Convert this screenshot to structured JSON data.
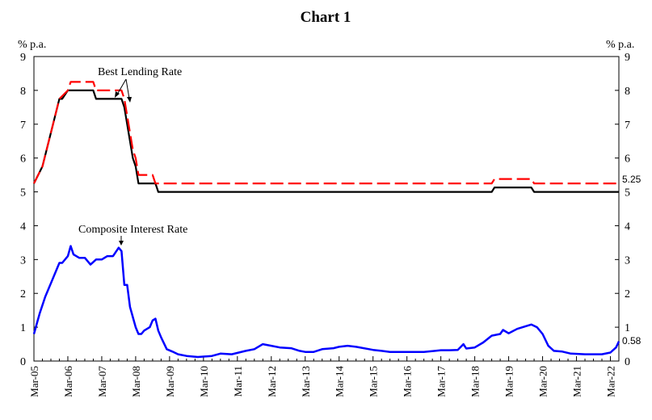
{
  "chart_data": {
    "type": "line",
    "title": "Chart 1",
    "ylabel_left": "% p.a.",
    "ylabel_right": "% p.a.",
    "ylim": [
      0,
      9
    ],
    "yticks": [
      0,
      1,
      2,
      3,
      4,
      5,
      6,
      7,
      8,
      9
    ],
    "x_start": "2005-03",
    "x_end": "2022-06",
    "xticks": [
      "Mar-05",
      "Mar-06",
      "Mar-07",
      "Mar-08",
      "Mar-09",
      "Mar-10",
      "Mar-11",
      "Mar-12",
      "Mar-13",
      "Mar-14",
      "Mar-15",
      "Mar-16",
      "Mar-17",
      "Mar-18",
      "Mar-19",
      "Mar-20",
      "Mar-21",
      "Mar-22"
    ],
    "grid": false,
    "annotations": [
      {
        "text": "Best Lending Rate",
        "series": "Best Lending Rate"
      },
      {
        "text": "Composite Interest Rate",
        "series": "Composite Interest Rate"
      }
    ],
    "end_labels": [
      {
        "text": "5.25",
        "value": 5.25
      },
      {
        "text": "0.58",
        "value": 0.58
      }
    ],
    "series": [
      {
        "name": "Best Lending Rate",
        "color": "#ff0000",
        "dash": true,
        "points": [
          [
            "2005-03",
            5.25
          ],
          [
            "2005-06",
            5.75
          ],
          [
            "2005-09",
            6.75
          ],
          [
            "2005-12",
            7.75
          ],
          [
            "2006-03",
            8.0
          ],
          [
            "2006-04",
            8.25
          ],
          [
            "2006-12",
            8.25
          ],
          [
            "2007-01",
            8.0
          ],
          [
            "2007-10",
            8.0
          ],
          [
            "2007-11",
            7.75
          ],
          [
            "2007-12",
            7.25
          ],
          [
            "2008-01",
            6.75
          ],
          [
            "2008-02",
            6.25
          ],
          [
            "2008-03",
            6.0
          ],
          [
            "2008-04",
            5.5
          ],
          [
            "2008-09",
            5.5
          ],
          [
            "2008-10",
            5.25
          ],
          [
            "2018-09",
            5.25
          ],
          [
            "2018-10",
            5.38
          ],
          [
            "2019-11",
            5.38
          ],
          [
            "2019-12",
            5.25
          ],
          [
            "2022-06",
            5.25
          ]
        ]
      },
      {
        "name": "Best Lending Rate (lower)",
        "color": "#000000",
        "dash": false,
        "points": [
          [
            "2005-03",
            5.25
          ],
          [
            "2005-06",
            5.75
          ],
          [
            "2005-09",
            6.75
          ],
          [
            "2005-12",
            7.75
          ],
          [
            "2006-01",
            7.75
          ],
          [
            "2006-03",
            8.0
          ],
          [
            "2006-12",
            8.0
          ],
          [
            "2007-01",
            7.75
          ],
          [
            "2007-10",
            7.75
          ],
          [
            "2007-11",
            7.5
          ],
          [
            "2007-12",
            7.0
          ],
          [
            "2008-01",
            6.5
          ],
          [
            "2008-02",
            6.0
          ],
          [
            "2008-03",
            5.75
          ],
          [
            "2008-04",
            5.25
          ],
          [
            "2008-10",
            5.25
          ],
          [
            "2008-11",
            5.0
          ],
          [
            "2018-09",
            5.0
          ],
          [
            "2018-10",
            5.13
          ],
          [
            "2019-11",
            5.13
          ],
          [
            "2019-12",
            5.0
          ],
          [
            "2022-06",
            5.0
          ]
        ]
      },
      {
        "name": "Composite Interest Rate",
        "color": "#0000ff",
        "dash": false,
        "points": [
          [
            "2005-03",
            0.8
          ],
          [
            "2005-05",
            1.4
          ],
          [
            "2005-07",
            1.9
          ],
          [
            "2005-09",
            2.3
          ],
          [
            "2005-11",
            2.7
          ],
          [
            "2005-12",
            2.9
          ],
          [
            "2006-01",
            2.9
          ],
          [
            "2006-03",
            3.1
          ],
          [
            "2006-04",
            3.4
          ],
          [
            "2006-05",
            3.15
          ],
          [
            "2006-07",
            3.05
          ],
          [
            "2006-09",
            3.05
          ],
          [
            "2006-11",
            2.85
          ],
          [
            "2007-01",
            3.0
          ],
          [
            "2007-03",
            3.0
          ],
          [
            "2007-05",
            3.1
          ],
          [
            "2007-07",
            3.1
          ],
          [
            "2007-09",
            3.35
          ],
          [
            "2007-10",
            3.25
          ],
          [
            "2007-11",
            2.25
          ],
          [
            "2007-12",
            2.25
          ],
          [
            "2008-01",
            1.6
          ],
          [
            "2008-02",
            1.3
          ],
          [
            "2008-03",
            1.0
          ],
          [
            "2008-04",
            0.8
          ],
          [
            "2008-05",
            0.8
          ],
          [
            "2008-06",
            0.9
          ],
          [
            "2008-08",
            1.0
          ],
          [
            "2008-09",
            1.2
          ],
          [
            "2008-10",
            1.25
          ],
          [
            "2008-11",
            0.9
          ],
          [
            "2008-12",
            0.7
          ],
          [
            "2009-02",
            0.35
          ],
          [
            "2009-04",
            0.28
          ],
          [
            "2009-06",
            0.2
          ],
          [
            "2009-09",
            0.15
          ],
          [
            "2010-01",
            0.12
          ],
          [
            "2010-06",
            0.15
          ],
          [
            "2010-09",
            0.22
          ],
          [
            "2011-01",
            0.2
          ],
          [
            "2011-06",
            0.3
          ],
          [
            "2011-09",
            0.35
          ],
          [
            "2011-12",
            0.5
          ],
          [
            "2012-03",
            0.45
          ],
          [
            "2012-06",
            0.4
          ],
          [
            "2012-10",
            0.38
          ],
          [
            "2013-01",
            0.3
          ],
          [
            "2013-03",
            0.27
          ],
          [
            "2013-06",
            0.27
          ],
          [
            "2013-09",
            0.35
          ],
          [
            "2014-01",
            0.38
          ],
          [
            "2014-03",
            0.42
          ],
          [
            "2014-06",
            0.45
          ],
          [
            "2014-09",
            0.42
          ],
          [
            "2015-03",
            0.33
          ],
          [
            "2015-06",
            0.3
          ],
          [
            "2015-09",
            0.27
          ],
          [
            "2016-03",
            0.27
          ],
          [
            "2016-09",
            0.27
          ],
          [
            "2017-01",
            0.3
          ],
          [
            "2017-03",
            0.32
          ],
          [
            "2017-06",
            0.32
          ],
          [
            "2017-09",
            0.33
          ],
          [
            "2017-11",
            0.5
          ],
          [
            "2017-12",
            0.37
          ],
          [
            "2018-03",
            0.4
          ],
          [
            "2018-06",
            0.55
          ],
          [
            "2018-09",
            0.75
          ],
          [
            "2018-12",
            0.8
          ],
          [
            "2019-01",
            0.92
          ],
          [
            "2019-03",
            0.82
          ],
          [
            "2019-06",
            0.95
          ],
          [
            "2019-09",
            1.03
          ],
          [
            "2019-11",
            1.08
          ],
          [
            "2020-01",
            1.0
          ],
          [
            "2020-03",
            0.8
          ],
          [
            "2020-05",
            0.45
          ],
          [
            "2020-07",
            0.3
          ],
          [
            "2020-10",
            0.28
          ],
          [
            "2021-01",
            0.22
          ],
          [
            "2021-06",
            0.2
          ],
          [
            "2021-12",
            0.2
          ],
          [
            "2022-03",
            0.25
          ],
          [
            "2022-05",
            0.4
          ],
          [
            "2022-06",
            0.58
          ]
        ]
      }
    ]
  }
}
